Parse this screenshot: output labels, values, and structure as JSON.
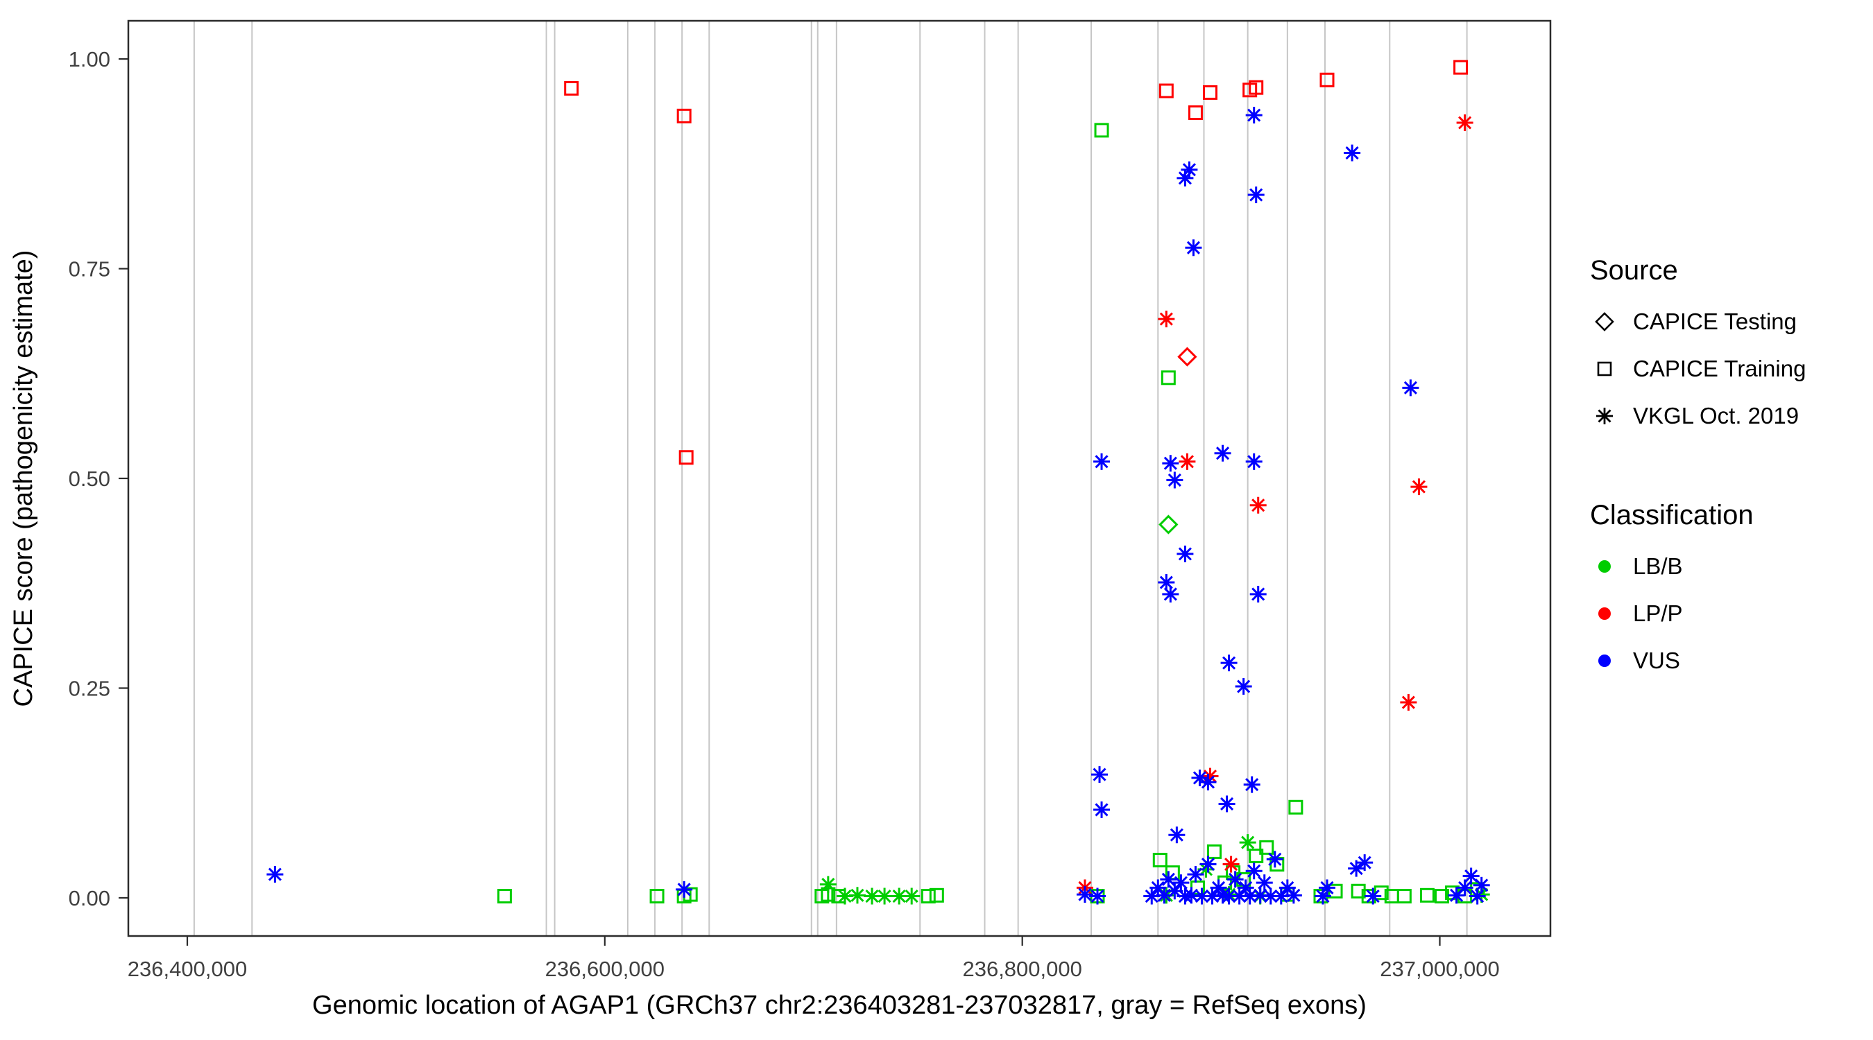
{
  "figure": {
    "x_axis_title": "Genomic location of AGAP1 (GRCh37 chr2:236403281-237032817, gray = RefSeq exons)",
    "y_axis_title": "CAPICE score (pathogenicity estimate)"
  },
  "legend": {
    "source": {
      "title": "Source",
      "items": [
        {
          "label": "CAPICE Testing",
          "shape": "diamond-icon"
        },
        {
          "label": "CAPICE Training",
          "shape": "square-icon"
        },
        {
          "label": "VKGL Oct. 2019",
          "shape": "asterisk-icon"
        }
      ]
    },
    "classification": {
      "title": "Classification",
      "items": [
        {
          "label": "LB/B",
          "color": "#00CD00"
        },
        {
          "label": "LP/P",
          "color": "#FF0000"
        },
        {
          "label": "VUS",
          "color": "#0000FF"
        }
      ]
    }
  },
  "chart_data": {
    "type": "scatter",
    "title": "",
    "xlabel": "Genomic location of AGAP1 (GRCh37 chr2:236403281-237032817, gray = RefSeq exons)",
    "ylabel": "CAPICE score (pathogenicity estimate)",
    "legend_position": "right",
    "grid": "vertical gray exon lines only",
    "xlim": [
      236371750,
      237053000
    ],
    "ylim": [
      -0.0455,
      1.0455
    ],
    "x_ticks": [
      {
        "value": 236400000,
        "label": "236,400,000"
      },
      {
        "value": 236600000,
        "label": "236,600,000"
      },
      {
        "value": 236800000,
        "label": "236,800,000"
      },
      {
        "value": 237000000,
        "label": "237,000,000"
      }
    ],
    "y_ticks": [
      {
        "value": 0.0,
        "label": "0.00"
      },
      {
        "value": 0.25,
        "label": "0.25"
      },
      {
        "value": 0.5,
        "label": "0.50"
      },
      {
        "value": 0.75,
        "label": "0.75"
      },
      {
        "value": 1.0,
        "label": "1.00"
      }
    ],
    "exon_line_color": "#c6c6c6",
    "exon_lines_x": [
      236403281,
      236431000,
      236572000,
      236576000,
      236611000,
      236624000,
      236637000,
      236650000,
      236699000,
      236702000,
      236711000,
      236751000,
      236782000,
      236798000,
      236833000,
      236865000,
      236887000,
      236908000,
      236927000,
      236945000,
      236976000,
      237013000
    ],
    "series": [
      {
        "name": "capice-testing-lpp",
        "source": "CAPICE Testing",
        "classification": "LP/P",
        "shape": "diamond",
        "color": "#FF0000",
        "points": [
          [
            236879000,
            0.645
          ]
        ]
      },
      {
        "name": "capice-testing-lbb",
        "source": "CAPICE Testing",
        "classification": "LB/B",
        "shape": "diamond",
        "color": "#00CD00",
        "points": [
          [
            236870000,
            0.445
          ]
        ]
      },
      {
        "name": "capice-training-lpp",
        "source": "CAPICE Training",
        "classification": "LP/P",
        "shape": "square",
        "color": "#FF0000",
        "points": [
          [
            236584000,
            0.965
          ],
          [
            236638000,
            0.932
          ],
          [
            236639000,
            0.525
          ],
          [
            236869000,
            0.962
          ],
          [
            236883000,
            0.936
          ],
          [
            236890000,
            0.96
          ],
          [
            236909000,
            0.963
          ],
          [
            236912000,
            0.966
          ],
          [
            236946000,
            0.975
          ],
          [
            237010000,
            0.99
          ]
        ]
      },
      {
        "name": "capice-training-lbb",
        "source": "CAPICE Training",
        "classification": "LB/B",
        "shape": "square",
        "color": "#00CD00",
        "points": [
          [
            236552000,
            0.002
          ],
          [
            236625000,
            0.002
          ],
          [
            236638000,
            0.002
          ],
          [
            236641000,
            0.004
          ],
          [
            236704000,
            0.002
          ],
          [
            236707000,
            0.004
          ],
          [
            236712000,
            0.002
          ],
          [
            236755000,
            0.002
          ],
          [
            236759000,
            0.003
          ],
          [
            236838000,
            0.915
          ],
          [
            236870000,
            0.62
          ],
          [
            236836000,
            0.002
          ],
          [
            236866000,
            0.045
          ],
          [
            236872000,
            0.03
          ],
          [
            236884000,
            0.012
          ],
          [
            236892000,
            0.055
          ],
          [
            236897000,
            0.018
          ],
          [
            236901000,
            0.03
          ],
          [
            236906000,
            0.022
          ],
          [
            236912000,
            0.05
          ],
          [
            236917000,
            0.06
          ],
          [
            236931000,
            0.108
          ],
          [
            236922000,
            0.04
          ],
          [
            236927000,
            0.004
          ],
          [
            236943000,
            0.002
          ],
          [
            236950000,
            0.008
          ],
          [
            236961000,
            0.008
          ],
          [
            236966000,
            0.002
          ],
          [
            236972000,
            0.006
          ],
          [
            236977000,
            0.002
          ],
          [
            236983000,
            0.002
          ],
          [
            236994000,
            0.003
          ],
          [
            237001000,
            0.002
          ],
          [
            237006000,
            0.006
          ],
          [
            237012000,
            0.002
          ],
          [
            237018000,
            0.01
          ]
        ]
      },
      {
        "name": "vkgl-lbb",
        "source": "VKGL Oct. 2019",
        "classification": "LB/B",
        "shape": "asterisk",
        "color": "#00CD00",
        "points": [
          [
            236707000,
            0.016
          ],
          [
            236715000,
            0.002
          ],
          [
            236721000,
            0.003
          ],
          [
            236728000,
            0.002
          ],
          [
            236734000,
            0.002
          ],
          [
            236741000,
            0.002
          ],
          [
            236747000,
            0.002
          ],
          [
            236869000,
            0.003
          ],
          [
            236888000,
            0.034
          ],
          [
            236899000,
            0.004
          ],
          [
            236908000,
            0.066
          ],
          [
            236914000,
            0.002
          ],
          [
            237020000,
            0.004
          ]
        ]
      },
      {
        "name": "vkgl-lpp",
        "source": "VKGL Oct. 2019",
        "classification": "LP/P",
        "shape": "asterisk",
        "color": "#FF0000",
        "points": [
          [
            236830000,
            0.012
          ],
          [
            236869000,
            0.69
          ],
          [
            236879000,
            0.52
          ],
          [
            236890000,
            0.145
          ],
          [
            236900000,
            0.04
          ],
          [
            236913000,
            0.468
          ],
          [
            236985000,
            0.233
          ],
          [
            236990000,
            0.49
          ],
          [
            237012000,
            0.924
          ]
        ]
      },
      {
        "name": "vkgl-vus",
        "source": "VKGL Oct. 2019",
        "classification": "VUS",
        "shape": "asterisk",
        "color": "#0000FF",
        "points": [
          [
            236442000,
            0.028
          ],
          [
            236638000,
            0.01
          ],
          [
            236838000,
            0.52
          ],
          [
            236837000,
            0.147
          ],
          [
            236838000,
            0.105
          ],
          [
            236830000,
            0.004
          ],
          [
            236836000,
            0.002
          ],
          [
            236871000,
            0.518
          ],
          [
            236873000,
            0.498
          ],
          [
            236878000,
            0.858
          ],
          [
            236880000,
            0.868
          ],
          [
            236882000,
            0.775
          ],
          [
            236896000,
            0.53
          ],
          [
            236878000,
            0.41
          ],
          [
            236869000,
            0.376
          ],
          [
            236871000,
            0.362
          ],
          [
            236911000,
            0.933
          ],
          [
            236912000,
            0.838
          ],
          [
            236911000,
            0.52
          ],
          [
            236913000,
            0.362
          ],
          [
            236899000,
            0.28
          ],
          [
            236906000,
            0.252
          ],
          [
            236885000,
            0.143
          ],
          [
            236889000,
            0.138
          ],
          [
            236910000,
            0.135
          ],
          [
            236898000,
            0.112
          ],
          [
            236874000,
            0.075
          ],
          [
            236958000,
            0.888
          ],
          [
            236986000,
            0.608
          ],
          [
            236862000,
            0.002
          ],
          [
            236865000,
            0.012
          ],
          [
            236868000,
            0.003
          ],
          [
            236870000,
            0.022
          ],
          [
            236873000,
            0.008
          ],
          [
            236876000,
            0.018
          ],
          [
            236878000,
            0.002
          ],
          [
            236881000,
            0.003
          ],
          [
            236883000,
            0.028
          ],
          [
            236886000,
            0.002
          ],
          [
            236889000,
            0.04
          ],
          [
            236891000,
            0.002
          ],
          [
            236894000,
            0.012
          ],
          [
            236896000,
            0.003
          ],
          [
            236899000,
            0.002
          ],
          [
            236902000,
            0.022
          ],
          [
            236904000,
            0.002
          ],
          [
            236907000,
            0.012
          ],
          [
            236909000,
            0.002
          ],
          [
            236911000,
            0.032
          ],
          [
            236914000,
            0.003
          ],
          [
            236916000,
            0.018
          ],
          [
            236919000,
            0.002
          ],
          [
            236921000,
            0.046
          ],
          [
            236924000,
            0.002
          ],
          [
            236927000,
            0.012
          ],
          [
            236930000,
            0.003
          ],
          [
            236944000,
            0.002
          ],
          [
            236946000,
            0.012
          ],
          [
            236960000,
            0.035
          ],
          [
            236964000,
            0.042
          ],
          [
            236968000,
            0.002
          ],
          [
            237008000,
            0.003
          ],
          [
            237012000,
            0.012
          ],
          [
            237015000,
            0.026
          ],
          [
            237018000,
            0.002
          ],
          [
            237020000,
            0.015
          ]
        ]
      }
    ]
  }
}
